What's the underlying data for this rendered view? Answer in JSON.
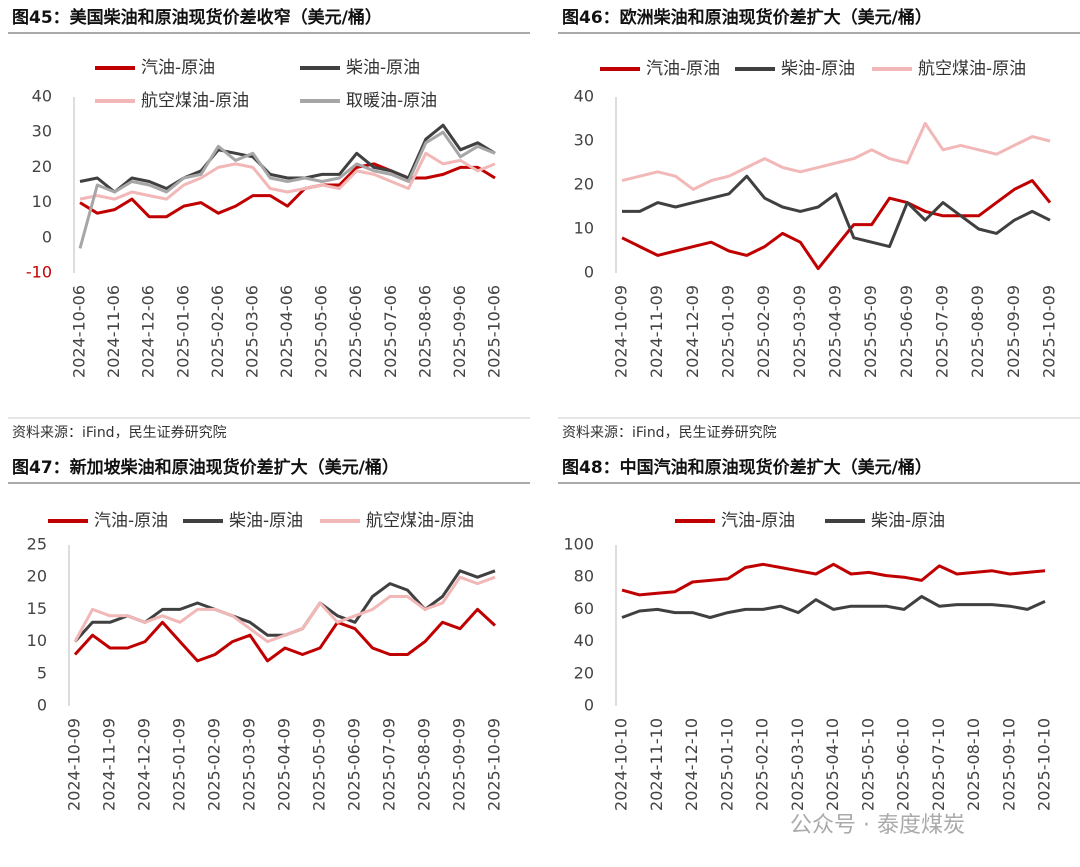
{
  "chart_data": [
    {
      "type": "line",
      "title": "图45：美国柴油和原油现货价差收窄（美元/桶）",
      "source": "资料来源：iFind，民生证券研究院",
      "categories": [
        "2024-10-06",
        null,
        "2024-11-06",
        null,
        "2024-12-06",
        null,
        "2025-01-06",
        null,
        "2025-02-06",
        null,
        "2025-03-06",
        null,
        "2025-04-06",
        null,
        "2025-05-06",
        null,
        "2025-06-06",
        null,
        "2025-07-06",
        null,
        "2025-08-06",
        null,
        "2025-09-06",
        null,
        "2025-10-06"
      ],
      "series": [
        {
          "name": "汽油-原油",
          "color": "#c00000",
          "values": [
            10,
            7,
            8,
            11,
            6,
            6,
            9,
            10,
            7,
            9,
            12,
            12,
            9,
            14,
            15,
            15,
            20,
            21,
            19,
            17,
            17,
            18,
            20,
            20,
            17
          ]
        },
        {
          "name": "柴油-原油",
          "color": "#404040",
          "values": [
            16,
            17,
            13,
            17,
            16,
            14,
            17,
            19,
            25,
            24,
            23,
            18,
            17,
            17,
            18,
            18,
            24,
            20,
            19,
            17,
            28,
            32,
            25,
            27,
            24
          ]
        },
        {
          "name": "航空煤油-原油",
          "color": "#f2b8b8",
          "values": [
            11,
            12,
            11,
            13,
            12,
            11,
            15,
            17,
            20,
            21,
            20,
            14,
            13,
            14,
            15,
            14,
            19,
            18,
            16,
            14,
            24,
            21,
            22,
            19,
            21
          ]
        },
        {
          "name": "取暖油-原油",
          "color": "#a6a6a6",
          "values": [
            -3,
            15,
            13,
            16,
            15,
            13,
            17,
            18,
            26,
            22,
            24,
            17,
            16,
            17,
            16,
            17,
            21,
            19,
            18,
            16,
            27,
            30,
            23,
            26,
            24
          ]
        }
      ],
      "ylim": [
        -10,
        40
      ],
      "yticks": [
        -10,
        0,
        10,
        20,
        30,
        40
      ],
      "negative_tick_color": "#c00000"
    },
    {
      "type": "line",
      "title": "图46：欧洲柴油和原油现货价差扩大（美元/桶）",
      "source": "资料来源：iFind，民生证券研究院",
      "categories": [
        "2024-10-09",
        null,
        "2024-11-09",
        null,
        "2024-12-09",
        null,
        "2025-01-09",
        null,
        "2025-02-09",
        null,
        "2025-03-09",
        null,
        "2025-04-09",
        null,
        "2025-05-09",
        null,
        "2025-06-09",
        null,
        "2025-07-09",
        null,
        "2025-08-09",
        null,
        "2025-09-09",
        null,
        "2025-10-09"
      ],
      "series": [
        {
          "name": "汽油-原油",
          "color": "#c00000",
          "values": [
            8,
            6,
            4,
            5,
            6,
            7,
            5,
            4,
            6,
            9,
            7,
            1,
            6,
            11,
            11,
            17,
            16,
            14,
            13,
            13,
            13,
            16,
            19,
            21,
            16
          ]
        },
        {
          "name": "柴油-原油",
          "color": "#404040",
          "values": [
            14,
            14,
            16,
            15,
            16,
            17,
            18,
            22,
            17,
            15,
            14,
            15,
            18,
            8,
            7,
            6,
            16,
            12,
            16,
            13,
            10,
            9,
            12,
            14,
            12
          ]
        },
        {
          "name": "航空煤油-原油",
          "color": "#f2b8b8",
          "values": [
            21,
            22,
            23,
            22,
            19,
            21,
            22,
            24,
            26,
            24,
            23,
            24,
            25,
            26,
            28,
            26,
            25,
            34,
            28,
            29,
            28,
            27,
            29,
            31,
            30
          ]
        }
      ],
      "ylim": [
        0,
        40
      ],
      "yticks": [
        0,
        10,
        20,
        30,
        40
      ]
    },
    {
      "type": "line",
      "title": "图47：新加坡柴油和原油现货价差扩大（美元/桶）",
      "source": "资料来源：iFind，民生证券研究院",
      "categories": [
        "2024-10-09",
        null,
        "2024-11-09",
        null,
        "2024-12-09",
        null,
        "2025-01-09",
        null,
        "2025-02-09",
        null,
        "2025-03-09",
        null,
        "2025-04-09",
        null,
        "2025-05-09",
        null,
        "2025-06-09",
        null,
        "2025-07-09",
        null,
        "2025-08-09",
        null,
        "2025-09-09",
        null,
        "2025-10-09"
      ],
      "series": [
        {
          "name": "汽油-原油",
          "color": "#c00000",
          "values": [
            8,
            11,
            9,
            9,
            10,
            13,
            10,
            7,
            8,
            10,
            11,
            7,
            9,
            8,
            9,
            13,
            12,
            9,
            8,
            8,
            10,
            13,
            12,
            15,
            12.5
          ]
        },
        {
          "name": "柴油-原油",
          "color": "#404040",
          "values": [
            10,
            13,
            13,
            14,
            13,
            15,
            15,
            16,
            15,
            14,
            13,
            11,
            11,
            12,
            16,
            14,
            13,
            17,
            19,
            18,
            15,
            17,
            21,
            20,
            21
          ]
        },
        {
          "name": "航空煤油-原油",
          "color": "#f2b8b8",
          "values": [
            10,
            15,
            14,
            14,
            13,
            14,
            13,
            15,
            15,
            14,
            12,
            10,
            11,
            12,
            16,
            13,
            14,
            15,
            17,
            17,
            15,
            16,
            20,
            19,
            20
          ]
        }
      ],
      "ylim": [
        0,
        25
      ],
      "yticks": [
        0,
        5,
        10,
        15,
        20,
        25
      ]
    },
    {
      "type": "line",
      "title": "图48：中国汽油和原油现货价差扩大（美元/桶）",
      "source": "资料来源：iFind，民生证券研究院",
      "categories": [
        "2024-10-10",
        null,
        "2024-11-10",
        null,
        "2024-12-10",
        null,
        "2025-01-10",
        null,
        "2025-02-10",
        null,
        "2025-03-10",
        null,
        "2025-04-10",
        null,
        "2025-05-10",
        null,
        "2025-06-10",
        null,
        "2025-07-10",
        null,
        "2025-08-10",
        null,
        "2025-09-10",
        null,
        "2025-10-10"
      ],
      "series": [
        {
          "name": "汽油-原油",
          "color": "#c00000",
          "values": [
            72,
            69,
            70,
            71,
            77,
            78,
            79,
            86,
            88,
            86,
            84,
            82,
            88,
            82,
            83,
            81,
            80,
            78,
            87,
            82,
            83,
            84,
            82,
            83,
            84
          ]
        },
        {
          "name": "柴油-原油",
          "color": "#404040",
          "values": [
            55,
            59,
            60,
            58,
            58,
            55,
            58,
            60,
            60,
            62,
            58,
            66,
            60,
            62,
            62,
            62,
            60,
            68,
            62,
            63,
            63,
            63,
            62,
            60,
            65
          ]
        }
      ],
      "ylim": [
        0,
        100
      ],
      "yticks": [
        0,
        20,
        40,
        60,
        80,
        100
      ]
    }
  ],
  "watermark": "公众号 · 泰度煤炭"
}
